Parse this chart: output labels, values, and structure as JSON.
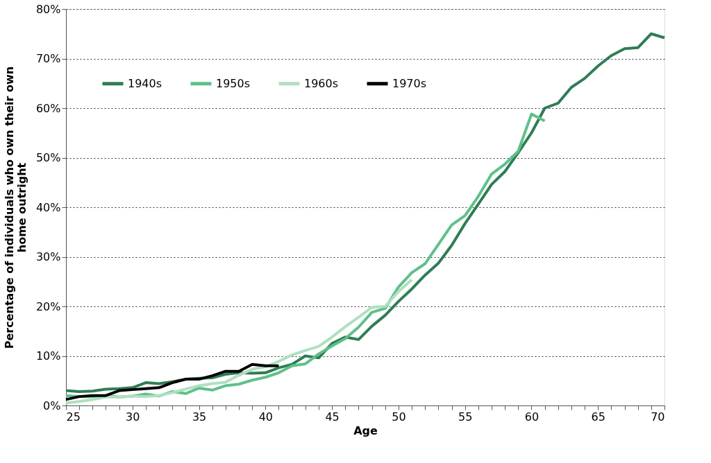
{
  "chart_data": {
    "type": "line",
    "xlabel": "Age",
    "ylabel": "Percentage of individuals who own their own home outright",
    "x": [
      25,
      26,
      27,
      28,
      29,
      30,
      31,
      32,
      33,
      34,
      35,
      36,
      37,
      38,
      39,
      40,
      41,
      42,
      43,
      44,
      45,
      46,
      47,
      48,
      49,
      50,
      51,
      52,
      53,
      54,
      55,
      56,
      57,
      58,
      59,
      60,
      61,
      62,
      63,
      64,
      65,
      66,
      67,
      68,
      69,
      70
    ],
    "series": [
      {
        "name": "1940s",
        "color": "#2e7d55",
        "values": [
          3.0,
          2.8,
          2.9,
          3.3,
          3.4,
          3.6,
          4.6,
          4.4,
          4.8,
          5.3,
          5.5,
          5.6,
          6.3,
          6.6,
          6.5,
          6.6,
          7.6,
          8.3,
          10.0,
          9.6,
          12.5,
          13.8,
          13.3,
          16.0,
          18.2,
          21.0,
          23.5,
          26.3,
          28.7,
          32.3,
          36.7,
          40.6,
          44.6,
          47.2,
          51.0,
          55.0,
          60.0,
          61.0,
          64.2,
          66.0,
          68.5,
          70.6,
          72.0,
          72.2,
          75.0,
          74.2
        ]
      },
      {
        "name": "1950s",
        "color": "#5fc08a",
        "values": [
          2.0,
          1.8,
          1.8,
          2.0,
          1.7,
          1.9,
          2.3,
          1.9,
          2.8,
          2.4,
          3.5,
          3.1,
          4.0,
          4.3,
          5.1,
          5.7,
          6.6,
          8.0,
          8.4,
          10.4,
          12.0,
          13.5,
          15.8,
          18.8,
          19.6,
          23.9,
          26.8,
          28.6,
          32.5,
          36.4,
          38.3,
          42.2,
          46.7,
          48.7,
          51.3,
          58.8,
          57.4,
          null,
          null,
          null,
          null,
          null,
          null,
          null,
          null,
          null
        ]
      },
      {
        "name": "1960s",
        "color": "#b0dfc0",
        "values": [
          0.5,
          0.8,
          1.2,
          1.7,
          1.7,
          1.9,
          1.8,
          2.0,
          2.6,
          3.3,
          4.0,
          4.4,
          4.7,
          6.1,
          7.3,
          7.8,
          8.9,
          10.2,
          11.1,
          11.9,
          13.8,
          15.9,
          17.8,
          19.8,
          20.0,
          23.0,
          25.4,
          null,
          null,
          null,
          null,
          null,
          null,
          null,
          null,
          null,
          null,
          null,
          null,
          null,
          null,
          null,
          null,
          null,
          null,
          null
        ]
      },
      {
        "name": "1970s",
        "color": "#000000",
        "values": [
          1.2,
          1.8,
          2.0,
          2.0,
          3.0,
          3.2,
          3.4,
          3.6,
          4.6,
          5.3,
          5.3,
          6.0,
          6.9,
          6.9,
          8.3,
          8.0,
          8.0,
          null,
          null,
          null,
          null,
          null,
          null,
          null,
          null,
          null,
          null,
          null,
          null,
          null,
          null,
          null,
          null,
          null,
          null,
          null,
          null,
          null,
          null,
          null,
          null,
          null,
          null,
          null,
          null,
          null
        ]
      }
    ],
    "xlim": [
      25,
      70
    ],
    "xticks": [
      25,
      {
        "value": 26,
        "label": null
      },
      {
        "value": 27,
        "label": null
      },
      {
        "value": 28,
        "label": null
      },
      {
        "value": 29,
        "label": null
      },
      30,
      {
        "value": 31,
        "label": null
      },
      {
        "value": 32,
        "label": null
      },
      {
        "value": 33,
        "label": null
      },
      {
        "value": 34,
        "label": null
      },
      35,
      {
        "value": 36,
        "label": null
      },
      {
        "value": 37,
        "label": null
      },
      {
        "value": 38,
        "label": null
      },
      {
        "value": 39,
        "label": null
      },
      40,
      {
        "value": 41,
        "label": null
      },
      {
        "value": 42,
        "label": null
      },
      {
        "value": 43,
        "label": null
      },
      {
        "value": 44,
        "label": null
      },
      45,
      {
        "value": 46,
        "label": null
      },
      {
        "value": 47,
        "label": null
      },
      {
        "value": 48,
        "label": null
      },
      {
        "value": 49,
        "label": null
      },
      50,
      {
        "value": 51,
        "label": null
      },
      {
        "value": 52,
        "label": null
      },
      {
        "value": 53,
        "label": null
      },
      {
        "value": 54,
        "label": null
      },
      55,
      {
        "value": 56,
        "label": null
      },
      {
        "value": 57,
        "label": null
      },
      {
        "value": 58,
        "label": null
      },
      {
        "value": 59,
        "label": null
      },
      60,
      {
        "value": 61,
        "label": null
      },
      {
        "value": 62,
        "label": null
      },
      {
        "value": 63,
        "label": null
      },
      {
        "value": 64,
        "label": null
      },
      65,
      {
        "value": 66,
        "label": null
      },
      {
        "value": 67,
        "label": null
      },
      {
        "value": 68,
        "label": null
      },
      {
        "value": 69,
        "label": null
      },
      70
    ],
    "ylim": [
      0,
      80
    ],
    "yticks": [
      {
        "value": 0,
        "label": "0%"
      },
      {
        "value": 10,
        "label": "10%"
      },
      {
        "value": 20,
        "label": "20%"
      },
      {
        "value": 30,
        "label": "30%"
      },
      {
        "value": 40,
        "label": "40%"
      },
      {
        "value": 50,
        "label": "50%"
      },
      {
        "value": 60,
        "label": "60%"
      },
      {
        "value": 70,
        "label": "70%"
      },
      {
        "value": 80,
        "label": "80%"
      }
    ],
    "grid": "y",
    "legend": "top left",
    "marker": "none",
    "line_style": "solid"
  }
}
